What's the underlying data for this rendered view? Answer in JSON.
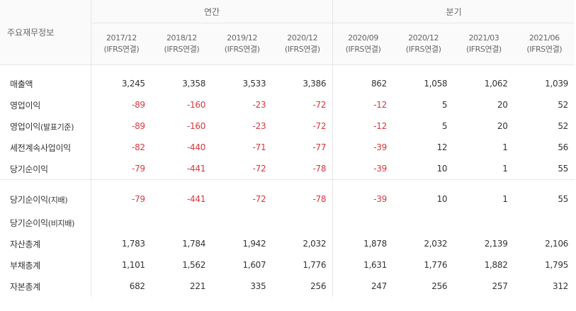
{
  "table": {
    "header_label": "주요재무정보",
    "groups": {
      "annual": "연간",
      "quarterly": "분기"
    },
    "periods": [
      {
        "date": "2017/12",
        "basis": "(IFRS연결)"
      },
      {
        "date": "2018/12",
        "basis": "(IFRS연결)"
      },
      {
        "date": "2019/12",
        "basis": "(IFRS연결)"
      },
      {
        "date": "2020/12",
        "basis": "(IFRS연결)"
      },
      {
        "date": "2020/09",
        "basis": "(IFRS연결)"
      },
      {
        "date": "2020/12",
        "basis": "(IFRS연결)"
      },
      {
        "date": "2021/03",
        "basis": "(IFRS연결)"
      },
      {
        "date": "2021/06",
        "basis": "(IFRS연결)"
      }
    ],
    "rows": [
      {
        "label": "매출액",
        "sub": "",
        "values": [
          "3,245",
          "3,358",
          "3,533",
          "3,386",
          "862",
          "1,058",
          "1,062",
          "1,039"
        ]
      },
      {
        "label": "영업이익",
        "sub": "",
        "values": [
          "-89",
          "-160",
          "-23",
          "-72",
          "-12",
          "5",
          "20",
          "52"
        ]
      },
      {
        "label": "영업이익",
        "sub": "(발표기준)",
        "values": [
          "-89",
          "-160",
          "-23",
          "-72",
          "-12",
          "5",
          "20",
          "52"
        ]
      },
      {
        "label": "세전계속사업이익",
        "sub": "",
        "values": [
          "-82",
          "-440",
          "-71",
          "-77",
          "-39",
          "12",
          "1",
          "56"
        ]
      },
      {
        "label": "당기순이익",
        "sub": "",
        "values": [
          "-79",
          "-441",
          "-72",
          "-78",
          "-39",
          "10",
          "1",
          "55"
        ]
      },
      {
        "label": "당기순이익",
        "sub": "(지배)",
        "values": [
          "-79",
          "-441",
          "-72",
          "-78",
          "-39",
          "10",
          "1",
          "55"
        ]
      },
      {
        "label": "당기순이익",
        "sub": "(비지배)",
        "values": [
          "",
          "",
          "",
          "",
          "",
          "",
          "",
          ""
        ]
      },
      {
        "label": "자산총계",
        "sub": "",
        "values": [
          "1,783",
          "1,784",
          "1,942",
          "2,032",
          "1,878",
          "2,032",
          "2,139",
          "2,106"
        ]
      },
      {
        "label": "부채총계",
        "sub": "",
        "values": [
          "1,101",
          "1,562",
          "1,607",
          "1,776",
          "1,631",
          "1,776",
          "1,882",
          "1,795"
        ]
      },
      {
        "label": "자본총계",
        "sub": "",
        "values": [
          "682",
          "221",
          "335",
          "256",
          "247",
          "256",
          "257",
          "312"
        ]
      }
    ]
  },
  "colors": {
    "negative": "#d9363e",
    "text": "#333333",
    "border": "#e6e6e6",
    "header_bg": "#fafafa"
  }
}
